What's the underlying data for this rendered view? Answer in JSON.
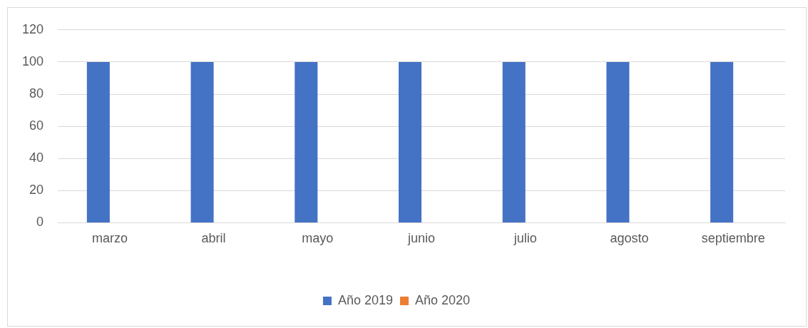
{
  "chart_data": {
    "type": "bar",
    "categories": [
      "marzo",
      "abril",
      "mayo",
      "junio",
      "julio",
      "agosto",
      "septiembre"
    ],
    "series": [
      {
        "name": "Año 2019",
        "color": "#4472c4",
        "values": [
          100,
          100,
          100,
          100,
          100,
          100,
          100
        ]
      },
      {
        "name": "Año 2020",
        "color": "#ed7d31",
        "values": [
          0,
          0,
          0,
          0,
          0,
          0,
          0
        ]
      }
    ],
    "ylim": [
      0,
      120
    ],
    "yticks": [
      0,
      20,
      40,
      60,
      80,
      100,
      120
    ],
    "grid": "y",
    "legend": "bottom"
  }
}
